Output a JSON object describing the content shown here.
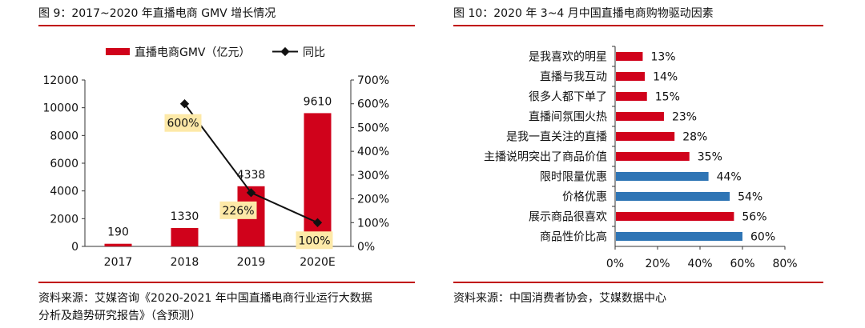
{
  "figures": [
    {
      "title": "图 9：2017~2020 年直播电商 GMV 增长情况",
      "source_line1": "资料来源：艾媒咨询《2020-2021 年中国直播电商行业运行大数据",
      "source_line2": "分析及趋势研究报告》（含预测）"
    },
    {
      "title": "图 10：2020 年 3~4 月中国直播电商购物驱动因素",
      "source_line1": "资料来源：中国消费者协会，艾媒数据中心"
    }
  ],
  "chart_data": [
    {
      "type": "bar",
      "categories": [
        "2017",
        "2018",
        "2019",
        "2020E"
      ],
      "series": [
        {
          "name": "直播电商GMV（亿元）",
          "type": "bar",
          "axis": "left",
          "values": [
            190,
            1330,
            4338,
            9610
          ],
          "labels": [
            "190",
            "1330",
            "4338",
            "9610"
          ],
          "color": "#d0021b"
        },
        {
          "name": "同比",
          "type": "line",
          "axis": "right",
          "values": [
            null,
            600,
            226,
            100
          ],
          "labels": [
            "",
            "600%",
            "226%",
            "100%"
          ],
          "color": "#111111"
        }
      ],
      "ylim": [
        0,
        12000
      ],
      "yticks": [
        "0",
        "2000",
        "4000",
        "6000",
        "8000",
        "10000",
        "12000"
      ],
      "y2lim": [
        0,
        700
      ],
      "y2ticks": [
        "0%",
        "100%",
        "200%",
        "300%",
        "400%",
        "500%",
        "600%",
        "700%"
      ],
      "legend_position": "top",
      "grid": false
    },
    {
      "type": "bar",
      "orientation": "horizontal",
      "categories": [
        "是我喜欢的明星",
        "直播与我互动",
        "很多人都下单了",
        "直播间氛围火热",
        "是我一直关注的直播",
        "主播说明突出了商品价值",
        "限时限量优惠",
        "价格优惠",
        "展示商品很喜欢",
        "商品性价比高"
      ],
      "values": [
        13,
        14,
        15,
        23,
        28,
        35,
        44,
        54,
        56,
        60
      ],
      "labels": [
        "13%",
        "14%",
        "15%",
        "23%",
        "28%",
        "35%",
        "44%",
        "54%",
        "56%",
        "60%"
      ],
      "colors": [
        "#d0021b",
        "#d0021b",
        "#d0021b",
        "#d0021b",
        "#d0021b",
        "#d0021b",
        "#2f75b5",
        "#2f75b5",
        "#d0021b",
        "#2f75b5"
      ],
      "xlim": [
        0,
        80
      ],
      "xticks": [
        "0%",
        "20%",
        "40%",
        "60%",
        "80%"
      ],
      "grid": false
    }
  ]
}
